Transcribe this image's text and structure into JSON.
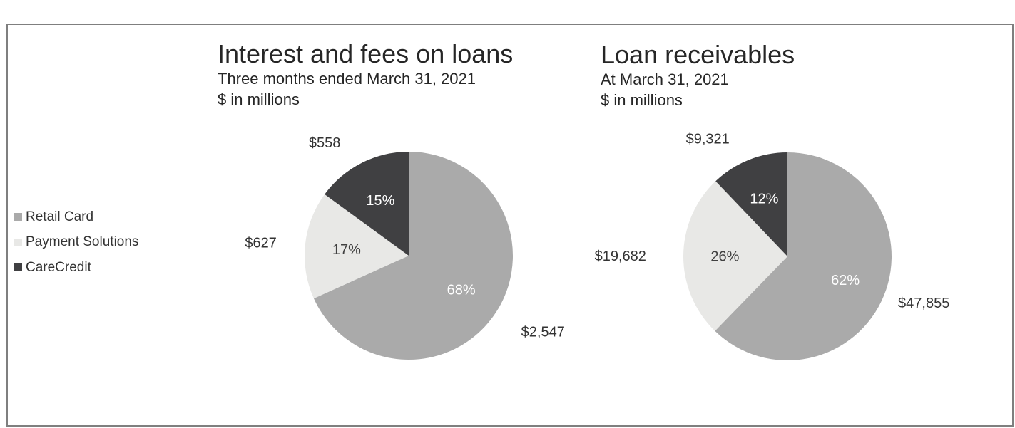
{
  "legend": [
    {
      "label": "Retail Card",
      "color": "#aaaaaa"
    },
    {
      "label": "Payment Solutions",
      "color": "#e8e8e6"
    },
    {
      "label": "CareCredit",
      "color": "#404042"
    }
  ],
  "chart_data": [
    {
      "type": "pie",
      "title": "Interest and fees on loans",
      "subtitle": "Three months ended March 31, 2021",
      "units": "$ in millions",
      "slices": [
        {
          "name": "Retail Card",
          "value": 2547,
          "value_label": "$2,547",
          "pct_label": "68%"
        },
        {
          "name": "Payment Solutions",
          "value": 627,
          "value_label": "$627",
          "pct_label": "17%"
        },
        {
          "name": "CareCredit",
          "value": 558,
          "value_label": "$558",
          "pct_label": "15%"
        }
      ]
    },
    {
      "type": "pie",
      "title": "Loan receivables",
      "subtitle": "At March 31, 2021",
      "units": "$ in millions",
      "slices": [
        {
          "name": "Retail Card",
          "value": 47855,
          "value_label": "$47,855",
          "pct_label": "62%"
        },
        {
          "name": "Payment Solutions",
          "value": 19682,
          "value_label": "$19,682",
          "pct_label": "26%"
        },
        {
          "name": "CareCredit",
          "value": 9321,
          "value_label": "$9,321",
          "pct_label": "12%"
        }
      ]
    }
  ]
}
